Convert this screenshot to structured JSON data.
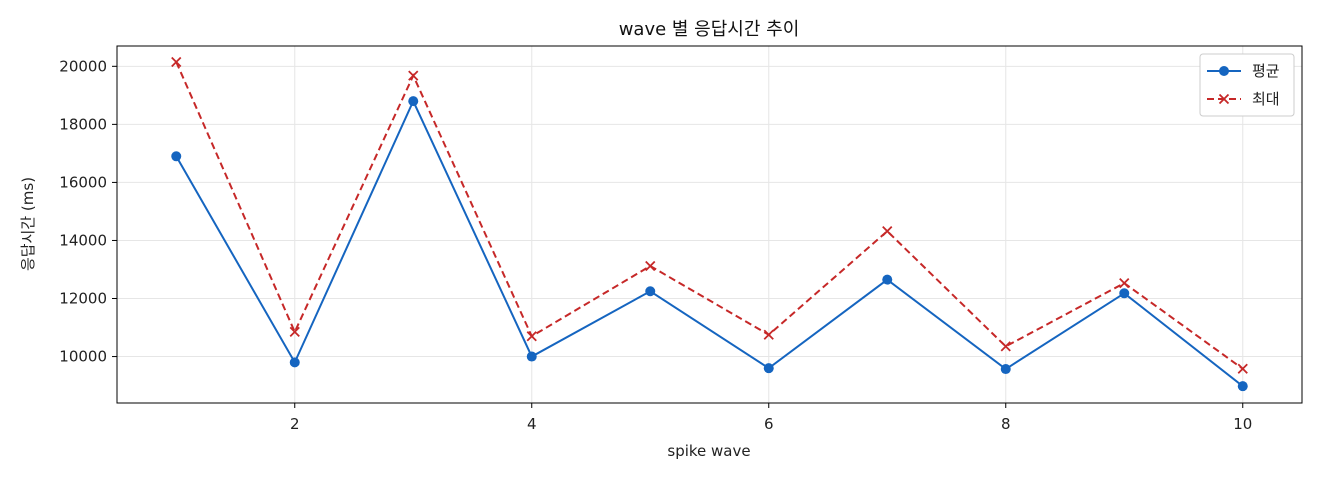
{
  "chart_data": {
    "type": "line",
    "title": "wave 별 응답시간 추이",
    "xlabel": "spike wave",
    "ylabel": "응답시간 (ms)",
    "x": [
      1,
      2,
      3,
      4,
      5,
      6,
      7,
      8,
      9,
      10
    ],
    "xlim": [
      0.5,
      10.5
    ],
    "ylim": [
      8400,
      20700
    ],
    "xticks": [
      2,
      4,
      6,
      8,
      10
    ],
    "yticks": [
      10000,
      12000,
      14000,
      16000,
      18000,
      20000
    ],
    "grid": true,
    "legend_position": "top-right",
    "series": [
      {
        "name": "평균",
        "color": "#1565c0",
        "line_style": "solid",
        "marker": "circle",
        "values": [
          16900,
          9800,
          18800,
          10000,
          12250,
          9600,
          12650,
          9570,
          12180,
          8980
        ]
      },
      {
        "name": "최대",
        "color": "#c62828",
        "line_style": "dashed",
        "marker": "x",
        "values": [
          20150,
          10850,
          19680,
          10700,
          13120,
          10750,
          14320,
          10350,
          12530,
          9580
        ]
      }
    ]
  }
}
